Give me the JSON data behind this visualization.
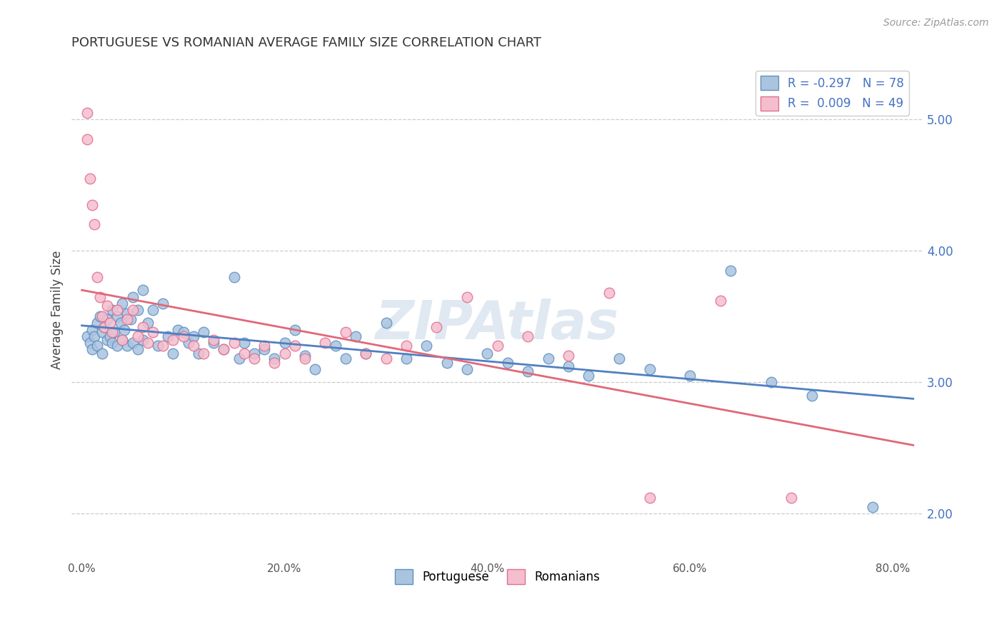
{
  "title": "PORTUGUESE VS ROMANIAN AVERAGE FAMILY SIZE CORRELATION CHART",
  "source": "Source: ZipAtlas.com",
  "ylabel": "Average Family Size",
  "xlabel_ticks": [
    "0.0%",
    "20.0%",
    "40.0%",
    "60.0%",
    "80.0%"
  ],
  "xlabel_vals": [
    0.0,
    0.2,
    0.4,
    0.6,
    0.8
  ],
  "yticks": [
    2.0,
    3.0,
    4.0,
    5.0
  ],
  "ylim": [
    1.65,
    5.45
  ],
  "xlim": [
    -0.01,
    0.83
  ],
  "title_color": "#333333",
  "source_color": "#999999",
  "watermark": "ZIPAtlas",
  "watermark_color": "#c8d8e8",
  "blue_color": "#aac4e0",
  "pink_color": "#f5bece",
  "blue_edge_color": "#6090c0",
  "pink_edge_color": "#e07090",
  "blue_line_color": "#5080c0",
  "pink_line_color": "#e06878",
  "legend_R_color": "#4472c4",
  "legend_R_portuguese": "R = -0.297",
  "legend_N_portuguese": "N = 78",
  "legend_R_romanians": "R =  0.009",
  "legend_N_romanians": "N = 49",
  "portuguese_x": [
    0.005,
    0.008,
    0.01,
    0.01,
    0.012,
    0.015,
    0.015,
    0.018,
    0.02,
    0.02,
    0.022,
    0.025,
    0.025,
    0.028,
    0.03,
    0.03,
    0.032,
    0.035,
    0.035,
    0.038,
    0.04,
    0.04,
    0.042,
    0.045,
    0.045,
    0.048,
    0.05,
    0.05,
    0.055,
    0.055,
    0.06,
    0.06,
    0.065,
    0.07,
    0.075,
    0.08,
    0.085,
    0.09,
    0.095,
    0.1,
    0.105,
    0.11,
    0.115,
    0.12,
    0.13,
    0.14,
    0.15,
    0.155,
    0.16,
    0.17,
    0.18,
    0.19,
    0.2,
    0.21,
    0.22,
    0.23,
    0.25,
    0.26,
    0.27,
    0.28,
    0.3,
    0.32,
    0.34,
    0.36,
    0.38,
    0.4,
    0.42,
    0.44,
    0.46,
    0.48,
    0.5,
    0.53,
    0.56,
    0.6,
    0.64,
    0.68,
    0.72,
    0.78
  ],
  "portuguese_y": [
    3.35,
    3.3,
    3.4,
    3.25,
    3.35,
    3.45,
    3.28,
    3.5,
    3.38,
    3.22,
    3.42,
    3.48,
    3.32,
    3.35,
    3.55,
    3.3,
    3.38,
    3.5,
    3.28,
    3.45,
    3.6,
    3.32,
    3.4,
    3.52,
    3.28,
    3.48,
    3.65,
    3.3,
    3.55,
    3.25,
    3.7,
    3.32,
    3.45,
    3.55,
    3.28,
    3.6,
    3.35,
    3.22,
    3.4,
    3.38,
    3.3,
    3.35,
    3.22,
    3.38,
    3.3,
    3.25,
    3.8,
    3.18,
    3.3,
    3.22,
    3.25,
    3.18,
    3.3,
    3.4,
    3.2,
    3.1,
    3.28,
    3.18,
    3.35,
    3.22,
    3.45,
    3.18,
    3.28,
    3.15,
    3.1,
    3.22,
    3.15,
    3.08,
    3.18,
    3.12,
    3.05,
    3.18,
    3.1,
    3.05,
    3.85,
    3.0,
    2.9,
    2.05
  ],
  "romanians_x": [
    0.005,
    0.005,
    0.008,
    0.01,
    0.012,
    0.015,
    0.018,
    0.02,
    0.022,
    0.025,
    0.028,
    0.03,
    0.035,
    0.04,
    0.045,
    0.05,
    0.055,
    0.06,
    0.065,
    0.07,
    0.08,
    0.09,
    0.1,
    0.11,
    0.12,
    0.13,
    0.14,
    0.15,
    0.16,
    0.17,
    0.18,
    0.19,
    0.2,
    0.21,
    0.22,
    0.24,
    0.26,
    0.28,
    0.3,
    0.32,
    0.35,
    0.38,
    0.41,
    0.44,
    0.48,
    0.52,
    0.56,
    0.63,
    0.7
  ],
  "romanians_y": [
    5.05,
    4.85,
    4.55,
    4.35,
    4.2,
    3.8,
    3.65,
    3.5,
    3.42,
    3.58,
    3.45,
    3.38,
    3.55,
    3.32,
    3.48,
    3.55,
    3.35,
    3.42,
    3.3,
    3.38,
    3.28,
    3.32,
    3.35,
    3.28,
    3.22,
    3.32,
    3.25,
    3.3,
    3.22,
    3.18,
    3.28,
    3.15,
    3.22,
    3.28,
    3.18,
    3.3,
    3.38,
    3.22,
    3.18,
    3.28,
    3.42,
    3.65,
    3.28,
    3.35,
    3.2,
    3.68,
    2.12,
    3.62,
    2.12
  ]
}
